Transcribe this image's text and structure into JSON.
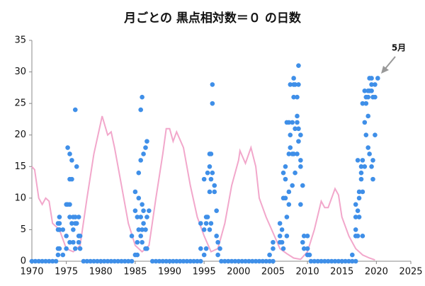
{
  "chart_data": {
    "type": "scatter",
    "title": "月ごとの  黒点相対数＝０ の日数",
    "annotation": "5月",
    "xlim": [
      1970,
      2025
    ],
    "xticks": [
      1970,
      1975,
      1980,
      1985,
      1990,
      1995,
      2000,
      2005,
      2010,
      2015,
      2020,
      2025
    ],
    "ylim": [
      0,
      35
    ],
    "yticks": [
      0,
      5,
      10,
      15,
      20,
      25,
      30,
      35
    ],
    "grid": false,
    "series": [
      {
        "type": "line",
        "color": "#f2a7cb",
        "x": [
          1970,
          1970.4,
          1971,
          1971.5,
          1972,
          1972.5,
          1973,
          1974,
          1975,
          1976,
          1977,
          1978,
          1979,
          1980,
          1980.2,
          1981,
          1981.5,
          1982,
          1983,
          1984,
          1985,
          1986,
          1987,
          1988,
          1989,
          1989.5,
          1990,
          1990.5,
          1991,
          1992,
          1993,
          1994,
          1995,
          1996,
          1997,
          1998,
          1999,
          2000,
          2000.2,
          2001,
          2001.8,
          2002.5,
          2003,
          2004,
          2005,
          2006,
          2007,
          2008,
          2009,
          2010,
          2011,
          2012,
          2012.5,
          2013,
          2014,
          2014.5,
          2015,
          2016,
          2017,
          2018,
          2019,
          2019.8
        ],
        "values": [
          15,
          14.5,
          10,
          9,
          10,
          9.5,
          6,
          5,
          2,
          1.5,
          2.5,
          10,
          17,
          22,
          23,
          20,
          20.5,
          18,
          12,
          6,
          2.5,
          1.5,
          2.5,
          10,
          17,
          21,
          21,
          19,
          20.5,
          18,
          12,
          7,
          4,
          1.5,
          2,
          6,
          12,
          16,
          17.5,
          15.5,
          18,
          15,
          10,
          7,
          4.5,
          2,
          1.2,
          0.5,
          0.3,
          1.5,
          5,
          9.5,
          8.5,
          8.5,
          11.5,
          10.5,
          7,
          4,
          2,
          1,
          0.5,
          0.2
        ]
      },
      {
        "type": "scatter",
        "color": "#3f8fe8",
        "x": [
          1970,
          1970.5,
          1971,
          1971.5,
          1972,
          1972.5,
          1973,
          1973.5,
          1977.5,
          1978,
          1978.5,
          1979,
          1979.5,
          1980,
          1980.5,
          1981,
          1981.5,
          1982,
          1982.5,
          1983,
          1983.5,
          1984,
          1984.5,
          1987.5,
          1988,
          1988.5,
          1989,
          1989.5,
          1990,
          1990.5,
          1991,
          1991.5,
          1992,
          1992.5,
          1993,
          1993.5,
          1994,
          1994.5,
          1997.5,
          1998,
          1998.5,
          1999,
          1999.5,
          2000,
          2000.5,
          2001,
          2001.5,
          2002,
          2002.5,
          2003,
          2003.5,
          2004,
          2004.5,
          2005,
          2010.5,
          2011,
          2011.5,
          2012,
          2012.5,
          2013,
          2013.5,
          2014,
          2014.5,
          2015,
          2015.5,
          2016,
          2016.5,
          2017
        ],
        "values": [
          0,
          0,
          0,
          0,
          0,
          0,
          0,
          0,
          0,
          0,
          0,
          0,
          0,
          0,
          0,
          0,
          0,
          0,
          0,
          0,
          0,
          0,
          0,
          0,
          0,
          0,
          0,
          0,
          0,
          0,
          0,
          0,
          0,
          0,
          0,
          0,
          0,
          0,
          0,
          0,
          0,
          0,
          0,
          0,
          0,
          0,
          0,
          0,
          0,
          0,
          0,
          0,
          0,
          0,
          0,
          0,
          0,
          0,
          0,
          0,
          0,
          0,
          0,
          0,
          0,
          0,
          0,
          0
        ]
      },
      {
        "type": "scatter",
        "color": "#3f8fe8",
        "x": [
          1973.8,
          1973.8,
          1973.8,
          1973.8,
          1974,
          1974,
          1974,
          1974,
          1974.5,
          1974.5,
          1975,
          1975,
          1975,
          1975.2,
          1975.2,
          1975.5,
          1975.5,
          1975.5,
          1975.5,
          1975.5,
          1975.8,
          1975.8,
          1975.8,
          1976,
          1976,
          1976,
          1976.3,
          1976.3,
          1976.3,
          1976.3,
          1976.5,
          1976.5,
          1976.8,
          1976.8,
          1976.8,
          1977,
          1977,
          1984.5,
          1985,
          1985,
          1985,
          1985.3,
          1985.3,
          1985.3,
          1985.5,
          1985.5,
          1985.5,
          1985.8,
          1985.8,
          1985.8,
          1985.8,
          1986,
          1986,
          1986,
          1986,
          1986.2,
          1986.2,
          1986.2,
          1986.5,
          1986.5,
          1986.5,
          1986.7,
          1986.7,
          1986.7,
          1987,
          1994.5,
          1994.5,
          1995,
          1995,
          1995,
          1995.3,
          1995.3,
          1995.3,
          1995.5,
          1995.5,
          1995.8,
          1995.8,
          1995.8,
          1995.8,
          1996,
          1996,
          1996,
          1996.2,
          1996.2,
          1996.2,
          1996.5,
          1996.5,
          1996.8,
          1996.8,
          1997,
          1997,
          1997.3,
          2004.5,
          2005,
          2005,
          2006,
          2006,
          2006,
          2006.3,
          2006.3,
          2006.5,
          2006.5,
          2006.5,
          2006.8,
          2006.8,
          2006.8,
          2007,
          2007,
          2007,
          2007.3,
          2007.3,
          2007.3,
          2007.3,
          2007.5,
          2007.5,
          2007.5,
          2007.8,
          2007.8,
          2007.8,
          2008,
          2008,
          2008,
          2008,
          2008.2,
          2008.2,
          2008.2,
          2008.5,
          2008.5,
          2008.5,
          2008.5,
          2008.7,
          2008.7,
          2008.7,
          2008.7,
          2009,
          2009,
          2009,
          2009,
          2009.3,
          2009.3,
          2009.5,
          2009.5,
          2010,
          2010,
          2010,
          2010.3,
          2016.5,
          2017,
          2017,
          2017,
          2017,
          2017.3,
          2017.3,
          2017.3,
          2017.5,
          2017.5,
          2017.5,
          2017.8,
          2017.8,
          2017.8,
          2018,
          2018,
          2018,
          2018,
          2018.3,
          2018.3,
          2018.3,
          2018.5,
          2018.5,
          2018.5,
          2018.8,
          2018.8,
          2018.8,
          2018.8,
          2019,
          2019,
          2019,
          2019.3,
          2019.3,
          2019.3,
          2019.3,
          2019.5,
          2019.5,
          2019.5,
          2019.8,
          2019.8,
          2019.8,
          2020.2
        ],
        "values": [
          6,
          5,
          2,
          1,
          7,
          6,
          5,
          2,
          5,
          1,
          9,
          4,
          2,
          18,
          9,
          13,
          17,
          9,
          7,
          3,
          16,
          13,
          6,
          7,
          5,
          3,
          24,
          7,
          6,
          2,
          15,
          6,
          7,
          4,
          3,
          4,
          2,
          4,
          8,
          11,
          1,
          7,
          3,
          1,
          14,
          10,
          5,
          24,
          16,
          7,
          4,
          26,
          9,
          5,
          3,
          17,
          8,
          6,
          18,
          5,
          2,
          19,
          7,
          2,
          8,
          6,
          2,
          13,
          5,
          1,
          7,
          6,
          2,
          14,
          7,
          17,
          15,
          11,
          5,
          17,
          13,
          6,
          28,
          25,
          14,
          12,
          11,
          8,
          4,
          3,
          1,
          2,
          1,
          2,
          3,
          6,
          4,
          3,
          5,
          3,
          14,
          10,
          2,
          15,
          13,
          10,
          22,
          7,
          4,
          22,
          17,
          11,
          9,
          28,
          20,
          18,
          22,
          17,
          12,
          29,
          28,
          26,
          17,
          28,
          21,
          14,
          26,
          23,
          22,
          17,
          31,
          28,
          21,
          19,
          20,
          16,
          15,
          9,
          12,
          3,
          2,
          4,
          1,
          2,
          4,
          1,
          1,
          9,
          7,
          5,
          4,
          16,
          8,
          4,
          11,
          10,
          7,
          15,
          14,
          13,
          25,
          16,
          11,
          4,
          27,
          22,
          15,
          26,
          25,
          20,
          27,
          26,
          23,
          18,
          29,
          27,
          17,
          29,
          28,
          27,
          15,
          26,
          16,
          13,
          28,
          26,
          20,
          29
        ]
      }
    ]
  }
}
